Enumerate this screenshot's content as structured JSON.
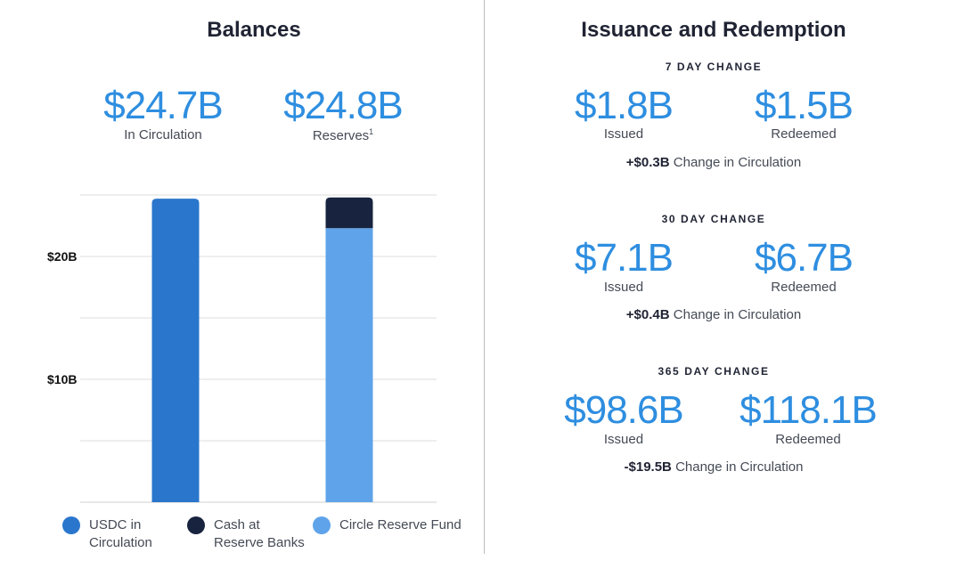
{
  "balances": {
    "title": "Balances",
    "circulation": {
      "value": "$24.7B",
      "label": "In Circulation"
    },
    "reserves": {
      "value": "$24.8B",
      "label": "Reserves",
      "footnote": "1"
    }
  },
  "issuance": {
    "title": "Issuance and Redemption",
    "periods": [
      {
        "heading": "7 DAY CHANGE",
        "issued": "$1.8B",
        "issued_label": "Issued",
        "redeemed": "$1.5B",
        "redeemed_label": "Redeemed",
        "change": "+$0.3B",
        "change_label": "Change in Circulation"
      },
      {
        "heading": "30 DAY CHANGE",
        "issued": "$7.1B",
        "issued_label": "Issued",
        "redeemed": "$6.7B",
        "redeemed_label": "Redeemed",
        "change": "+$0.4B",
        "change_label": "Change in Circulation"
      },
      {
        "heading": "365 DAY CHANGE",
        "issued": "$98.6B",
        "issued_label": "Issued",
        "redeemed": "$118.1B",
        "redeemed_label": "Redeemed",
        "change": "-$19.5B",
        "change_label": "Change in Circulation"
      }
    ]
  },
  "colors": {
    "usdc": "#2a76cc",
    "cash": "#18243f",
    "fund": "#5fa3ea",
    "grid": "#dcdcdc"
  },
  "chart_data": {
    "type": "bar",
    "stacked": true,
    "categories": [
      "USDC in Circulation",
      "Reserves"
    ],
    "series": [
      {
        "name": "USDC in Circulation",
        "values": [
          24.7,
          0
        ]
      },
      {
        "name": "Cash at Reserve Banks",
        "values": [
          0,
          2.5
        ]
      },
      {
        "name": "Circle Reserve Fund",
        "values": [
          0,
          22.3
        ]
      }
    ],
    "ylim": [
      0,
      25
    ],
    "yticks": [
      0,
      5,
      10,
      15,
      20,
      25
    ],
    "ytick_labels": {
      "10": "$10B",
      "20": "$20B"
    },
    "legend": [
      {
        "line1": "USDC in",
        "line2": "Circulation"
      },
      {
        "line1": "Cash at",
        "line2": "Reserve Banks"
      },
      {
        "line1": "Circle Reserve Fund",
        "line2": ""
      }
    ],
    "legend_position": "bottom"
  }
}
